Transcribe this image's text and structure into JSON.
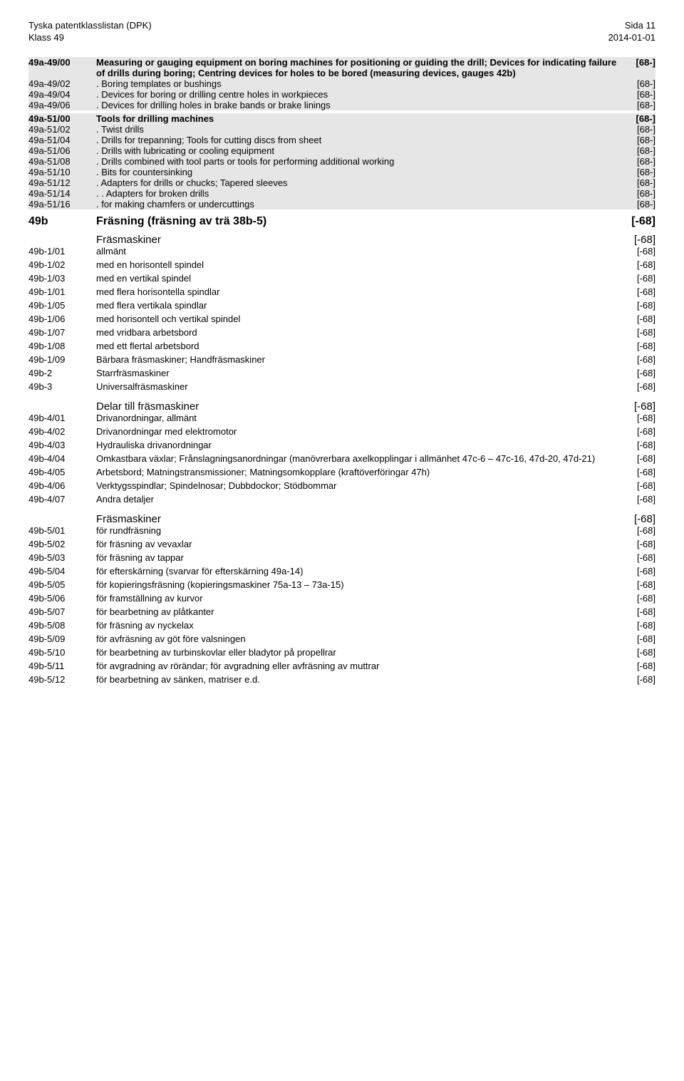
{
  "header": {
    "left1": "Tyska patentklasslistan (DPK)",
    "left2": "Klass 49",
    "right1": "Sida 11",
    "right2": "2014-01-01"
  },
  "rows": [
    {
      "type": "spacer"
    },
    {
      "bg": true,
      "code": "49a-49/00",
      "desc": "Measuring or gauging equipment on boring machines for positioning or guiding the drill; Devices for indicating failure of drills during boring; Centring devices for holes to be bored (measuring devices, gauges 42b)",
      "ref": "[68-]",
      "bold": true
    },
    {
      "bg": true,
      "code": "49a-49/02",
      "desc": ". Boring templates or bushings",
      "ref": "[68-]"
    },
    {
      "bg": true,
      "code": "49a-49/04",
      "desc": ". Devices for boring or drilling centre holes in workpieces",
      "ref": "[68-]"
    },
    {
      "bg": true,
      "code": "49a-49/06",
      "desc": ". Devices for drilling holes in brake bands or brake linings",
      "ref": "[68-]"
    },
    {
      "type": "small-spacer",
      "bg": false
    },
    {
      "bg": true,
      "code": "49a-51/00",
      "desc": "Tools for drilling machines",
      "ref": "[68-]",
      "bold": true
    },
    {
      "bg": true,
      "code": "49a-51/02",
      "desc": ". Twist drills",
      "ref": "[68-]"
    },
    {
      "bg": true,
      "code": "49a-51/04",
      "desc": ". Drills for trepanning; Tools for cutting discs from sheet",
      "ref": "[68-]"
    },
    {
      "bg": true,
      "code": "49a-51/06",
      "desc": ". Drills with lubricating or cooling equipment",
      "ref": "[68-]"
    },
    {
      "bg": true,
      "code": "49a-51/08",
      "desc": ". Drills combined with tool parts or tools for performing additional working",
      "ref": "[68-]"
    },
    {
      "bg": true,
      "code": "49a-51/10",
      "desc": ". Bits for countersinking",
      "ref": "[68-]"
    },
    {
      "bg": true,
      "code": "49a-51/12",
      "desc": ". Adapters for drills or chucks; Tapered sleeves",
      "ref": "[68-]"
    },
    {
      "bg": true,
      "code": "49a-51/14",
      "desc": ". . Adapters for broken drills",
      "ref": "[68-]"
    },
    {
      "bg": true,
      "code": "49a-51/16",
      "desc": ". for making chamfers or undercuttings",
      "ref": "[68-]"
    },
    {
      "type": "spacer"
    },
    {
      "code": "49b",
      "desc": "Fräsning (fräsning av trä 38b-5)",
      "ref": "[-68]",
      "big": true,
      "bold": true
    },
    {
      "type": "spacer"
    },
    {
      "code": "",
      "desc": "Fräsmaskiner",
      "ref": "[-68]",
      "section": true
    },
    {
      "code": "49b-1/01",
      "desc": "allmänt",
      "ref": "[-68]"
    },
    {
      "code": "49b-1/02",
      "desc": "med en horisontell spindel",
      "ref": "[-68]"
    },
    {
      "code": "49b-1/03",
      "desc": "med en vertikal spindel",
      "ref": "[-68]"
    },
    {
      "code": "49b-1/01",
      "desc": "med flera horisontella spindlar",
      "ref": "[-68]"
    },
    {
      "code": "49b-1/05",
      "desc": "med flera vertikala spindlar",
      "ref": "[-68]"
    },
    {
      "code": "49b-1/06",
      "desc": "med horisontell och vertikal spindel",
      "ref": "[-68]"
    },
    {
      "code": "49b-1/07",
      "desc": "med vridbara arbetsbord",
      "ref": "[-68]"
    },
    {
      "code": "49b-1/08",
      "desc": "med ett flertal arbetsbord",
      "ref": "[-68]"
    },
    {
      "code": "49b-1/09",
      "desc": "Bärbara fräsmaskiner; Handfräsmaskiner",
      "ref": "[-68]"
    },
    {
      "code": "49b-2",
      "desc": "Starrfräsmaskiner",
      "ref": "[-68]"
    },
    {
      "code": "49b-3",
      "desc": "Universalfräsmaskiner",
      "ref": "[-68]"
    },
    {
      "type": "spacer"
    },
    {
      "code": "",
      "desc": "Delar till fräsmaskiner",
      "ref": "[-68]",
      "section": true
    },
    {
      "code": "49b-4/01",
      "desc": "Drivanordningar, allmänt",
      "ref": "[-68]"
    },
    {
      "code": "49b-4/02",
      "desc": "Drivanordningar med elektromotor",
      "ref": "[-68]"
    },
    {
      "code": "49b-4/03",
      "desc": "Hydrauliska drivanordningar",
      "ref": "[-68]"
    },
    {
      "code": "49b-4/04",
      "desc": "Omkastbara växlar; Frånslagningsanordningar (manövrerbara axelkopplingar i allmänhet 47c-6 – 47c-16, 47d-20, 47d-21)",
      "ref": "[-68]"
    },
    {
      "code": "49b-4/05",
      "desc": "Arbetsbord; Matningstransmissioner; Matningsomkopplare (kraftöverföringar 47h)",
      "ref": "[-68]"
    },
    {
      "code": "49b-4/06",
      "desc": "Verktygsspindlar; Spindelnosar; Dubbdockor; Stödbommar",
      "ref": "[-68]"
    },
    {
      "code": "49b-4/07",
      "desc": "Andra detaljer",
      "ref": "[-68]"
    },
    {
      "type": "spacer"
    },
    {
      "code": "",
      "desc": "Fräsmaskiner",
      "ref": "[-68]",
      "section": true
    },
    {
      "code": "49b-5/01",
      "desc": "för rundfräsning",
      "ref": "[-68]"
    },
    {
      "code": "49b-5/02",
      "desc": "för fräsning av vevaxlar",
      "ref": "[-68]"
    },
    {
      "code": "49b-5/03",
      "desc": "för fräsning av tappar",
      "ref": "[-68]"
    },
    {
      "code": "49b-5/04",
      "desc": "för efterskärning (svarvar för efterskärning 49a-14)",
      "ref": "[-68]"
    },
    {
      "code": "49b-5/05",
      "desc": "för kopieringsfräsning (kopieringsmaskiner 75a-13 – 73a-15)",
      "ref": "[-68]"
    },
    {
      "code": "49b-5/06",
      "desc": "för framställning av kurvor",
      "ref": "[-68]"
    },
    {
      "code": "49b-5/07",
      "desc": "för bearbetning av plåtkanter",
      "ref": "[-68]"
    },
    {
      "code": "49b-5/08",
      "desc": "för fräsning av nyckelax",
      "ref": "[-68]"
    },
    {
      "code": "49b-5/09",
      "desc": "för avfräsning av göt före valsningen",
      "ref": "[-68]"
    },
    {
      "code": "49b-5/10",
      "desc": "för bearbetning av turbinskovlar eller bladytor på propellrar",
      "ref": "[-68]"
    },
    {
      "code": "49b-5/11",
      "desc": "för avgradning av rörändar; för avgradning eller avfräsning av muttrar",
      "ref": "[-68]"
    },
    {
      "code": "49b-5/12",
      "desc": "för bearbetning av sänken, matriser e.d.",
      "ref": "[-68]"
    }
  ]
}
